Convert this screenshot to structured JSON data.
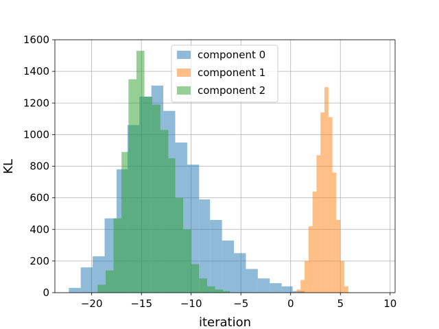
{
  "chart_data": {
    "type": "bar",
    "subtype": "histogram",
    "title": "",
    "xlabel": "iteration",
    "ylabel": "KL",
    "xlim": [
      -23.7,
      10.5
    ],
    "ylim": [
      0,
      1600
    ],
    "xticks": [
      -20,
      -15,
      -10,
      -5,
      0,
      5,
      10
    ],
    "xtick_labels": [
      "−20",
      "−15",
      "−10",
      "−5",
      "0",
      "5",
      "10"
    ],
    "yticks": [
      0,
      200,
      400,
      600,
      800,
      1000,
      1200,
      1400,
      1600
    ],
    "ytick_labels": [
      "0",
      "200",
      "400",
      "600",
      "800",
      "1000",
      "1200",
      "1400",
      "1600"
    ],
    "grid": true,
    "legend_position": "top-center",
    "series": [
      {
        "name": "component 0",
        "color": "#1f77b4",
        "alpha": 0.5,
        "bin_edges": [
          -22.3,
          -21.1,
          -19.9,
          -18.7,
          -17.5,
          -16.4,
          -15.2,
          -14.0,
          -12.8,
          -11.6,
          -10.4,
          -9.2,
          -8.1,
          -6.9,
          -5.7,
          -4.5,
          -3.3,
          -2.1,
          -0.9,
          0.2,
          1.4
        ],
        "counts": [
          30,
          160,
          230,
          470,
          780,
          1060,
          1240,
          1310,
          1150,
          950,
          810,
          590,
          460,
          330,
          250,
          150,
          90,
          60,
          40,
          10
        ]
      },
      {
        "name": "component 1",
        "color": "#ff7f0e",
        "alpha": 0.5,
        "bin_edges": [
          0.6,
          1.0,
          1.4,
          1.8,
          2.2,
          2.6,
          3.0,
          3.4,
          3.8,
          4.2,
          4.6,
          5.0,
          5.4,
          5.8
        ],
        "counts": [
          20,
          80,
          200,
          420,
          640,
          870,
          1140,
          1300,
          1110,
          760,
          460,
          200,
          40
        ]
      },
      {
        "name": "component 2",
        "color": "#2ca02c",
        "alpha": 0.5,
        "bin_edges": [
          -19.4,
          -18.6,
          -17.8,
          -17.0,
          -16.3,
          -15.5,
          -14.7,
          -13.9,
          -13.1,
          -12.3,
          -11.6,
          -10.8,
          -10.0,
          -9.2,
          -8.4,
          -7.6,
          -6.8,
          -6.1
        ],
        "counts": [
          50,
          140,
          470,
          890,
          1350,
          1530,
          1240,
          1190,
          1030,
          850,
          600,
          400,
          180,
          90,
          40,
          20,
          10
        ]
      }
    ]
  }
}
